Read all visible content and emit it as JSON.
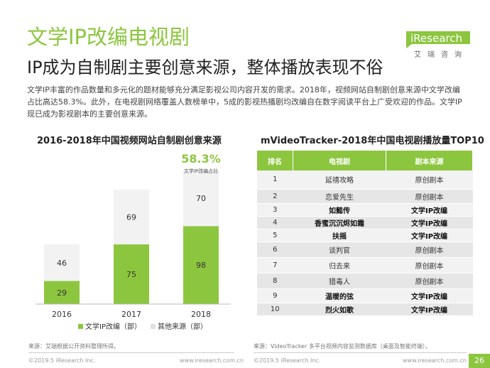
{
  "header": {
    "title": "文学IP改编电视剧",
    "subtitle": "IP成为自制剧主要创意来源，整体播放表现不俗",
    "description": "文学IP丰富的作品数量和多元化的题材能够充分满足影视公司内容开发的需求。2018年，视频网站自制剧创意来源中文学改编占比高达58.3%。此外，在电视剧网络覆盖人数榜单中，5成的影视热播剧均改编自在数字阅读平台上广受欢迎的作品。文学IP现已成为影视剧本的主要创意来源。"
  },
  "logo": {
    "text": "iResearch",
    "sub": "艾瑞咨询"
  },
  "colors": {
    "accent": "#8cc63f",
    "other": "#f2f2f2"
  },
  "chart_data": [
    {
      "type": "bar",
      "stacked": true,
      "title": "2016-2018年中国视频网站自制剧创意来源",
      "categories": [
        "2016",
        "2017",
        "2018"
      ],
      "series": [
        {
          "name": "文学IP改编（部）",
          "values": [
            29,
            75,
            98
          ],
          "color": "#8cc63f"
        },
        {
          "name": "其他来源（部）",
          "values": [
            46,
            69,
            70
          ],
          "color": "#f2f2f2"
        }
      ],
      "annotation": {
        "value": "58.3%",
        "label": "文学IP改编占比"
      },
      "legend": "bottom"
    },
    {
      "type": "table",
      "title": "mVideoTracker-2018年中国电视剧播放量TOP10",
      "columns": [
        "排名",
        "电视剧",
        "剧本来源"
      ],
      "rows": [
        {
          "rank": "1",
          "name": "延禧攻略",
          "source": "原创剧本",
          "bold": false
        },
        {
          "rank": "2",
          "name": "恋爱先生",
          "source": "原创剧本",
          "bold": false
        },
        {
          "rank": "3",
          "name": "如懿传",
          "source": "文学IP改编",
          "bold": true
        },
        {
          "rank": "4",
          "name": "香蜜沉沉烬如霜",
          "source": "文学IP改编",
          "bold": true
        },
        {
          "rank": "5",
          "name": "扶摇",
          "source": "文学IP改编",
          "bold": true
        },
        {
          "rank": "6",
          "name": "谈判官",
          "source": "原创剧本",
          "bold": false
        },
        {
          "rank": "7",
          "name": "归去来",
          "source": "原创剧本",
          "bold": false
        },
        {
          "rank": "8",
          "name": "猎毒人",
          "source": "原创剧本",
          "bold": false
        },
        {
          "rank": "9",
          "name": "温暖的弦",
          "source": "文学IP改编",
          "bold": true
        },
        {
          "rank": "10",
          "name": "烈火如歌",
          "source": "文学IP改编",
          "bold": true
        }
      ]
    }
  ],
  "sources": {
    "left": "来源：艾瑞根据公开资料整理所得。",
    "right": "来源：VideoTracker 多平台视频内容监测数据库（桌面及智能终端）。"
  },
  "footer": {
    "copyright": "©2019.5 iResearch Inc.",
    "url": "www.iresearch.com.cn",
    "page": "26"
  }
}
